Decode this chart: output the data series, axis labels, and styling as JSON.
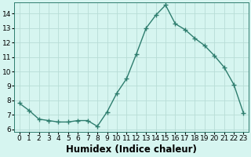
{
  "x": [
    0,
    1,
    2,
    3,
    4,
    5,
    6,
    7,
    8,
    9,
    10,
    11,
    12,
    13,
    14,
    15,
    16,
    17,
    18,
    19,
    20,
    21,
    22,
    23
  ],
  "y": [
    7.8,
    7.3,
    6.7,
    6.6,
    6.5,
    6.5,
    6.6,
    6.6,
    6.2,
    7.2,
    8.5,
    9.5,
    11.2,
    13.0,
    13.9,
    14.6,
    13.3,
    12.9,
    12.3,
    11.8,
    11.1,
    10.3,
    9.1,
    7.1
  ],
  "line_color": "#2e7d6e",
  "marker": "+",
  "marker_size": 4,
  "marker_linewidth": 1.0,
  "bg_color": "#d6f5f0",
  "grid_color": "#b8ddd6",
  "xlabel": "Humidex (Indice chaleur)",
  "xlim": [
    -0.5,
    23.5
  ],
  "ylim": [
    5.8,
    14.8
  ],
  "yticks": [
    6,
    7,
    8,
    9,
    10,
    11,
    12,
    13,
    14
  ],
  "xticks": [
    0,
    1,
    2,
    3,
    4,
    5,
    6,
    7,
    8,
    9,
    10,
    11,
    12,
    13,
    14,
    15,
    16,
    17,
    18,
    19,
    20,
    21,
    22,
    23
  ],
  "xtick_labels": [
    "0",
    "1",
    "2",
    "3",
    "4",
    "5",
    "6",
    "7",
    "8",
    "9",
    "10",
    "11",
    "12",
    "13",
    "14",
    "15",
    "16",
    "17",
    "18",
    "19",
    "20",
    "21",
    "22",
    "23"
  ],
  "tick_fontsize": 6.5,
  "xlabel_fontsize": 8.5,
  "linewidth": 1.0
}
